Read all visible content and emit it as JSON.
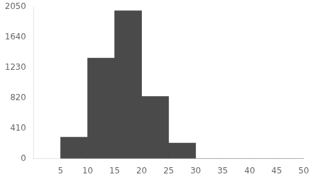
{
  "chart_data": {
    "type": "histogram",
    "bins": [
      5,
      10,
      15,
      20,
      25,
      30,
      35,
      40,
      45,
      50
    ],
    "values": [
      290,
      1360,
      2000,
      840,
      210,
      0,
      0,
      0,
      0
    ],
    "color": "#4a4a4a",
    "xlim": [
      0,
      50
    ],
    "ylim": [
      0,
      2050
    ],
    "xticks": [
      5,
      10,
      15,
      20,
      25,
      30,
      35,
      40,
      45,
      50
    ],
    "yticks": [
      0,
      410,
      820,
      1230,
      1640,
      2050
    ],
    "grid": false
  }
}
